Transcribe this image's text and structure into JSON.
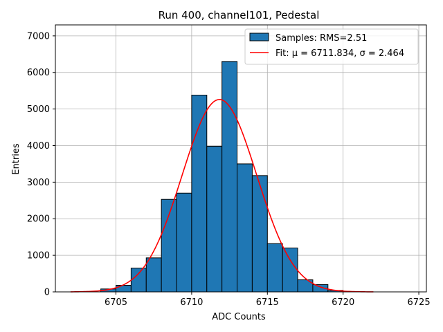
{
  "chart_data": {
    "type": "bar",
    "title": "Run 400, channel101, Pedestal",
    "xlabel": "ADC Counts",
    "ylabel": "Entries",
    "xlim": [
      6701,
      6725.5
    ],
    "ylim": [
      0,
      7300
    ],
    "grid": true,
    "legend_position": "top-right",
    "x_ticks": [
      6705,
      6710,
      6715,
      6720,
      6725
    ],
    "y_ticks": [
      0,
      1000,
      2000,
      3000,
      4000,
      5000,
      6000,
      7000
    ],
    "histogram": {
      "name": "Samples: RMS=2.51",
      "bin_width": 1,
      "bin_left_edges": [
        6704,
        6705,
        6706,
        6707,
        6708,
        6709,
        6710,
        6711,
        6712,
        6713,
        6714,
        6715,
        6716,
        6717,
        6718,
        6719
      ],
      "counts": [
        80,
        180,
        650,
        930,
        2530,
        2700,
        5380,
        3980,
        6300,
        3500,
        3180,
        1320,
        1200,
        330,
        200,
        40
      ],
      "color": "#1f77b4",
      "edgecolor": "#000000"
    },
    "fit": {
      "name": "Fit: μ = 6711.834, σ = 2.464",
      "mu": 6711.834,
      "sigma": 2.464,
      "amplitude": 5260,
      "x_range": [
        6702,
        6722
      ],
      "color": "#ff0000"
    },
    "legend": {
      "entries": [
        "Samples: RMS=2.51",
        "Fit: μ = 6711.834, σ = 2.464"
      ]
    }
  }
}
